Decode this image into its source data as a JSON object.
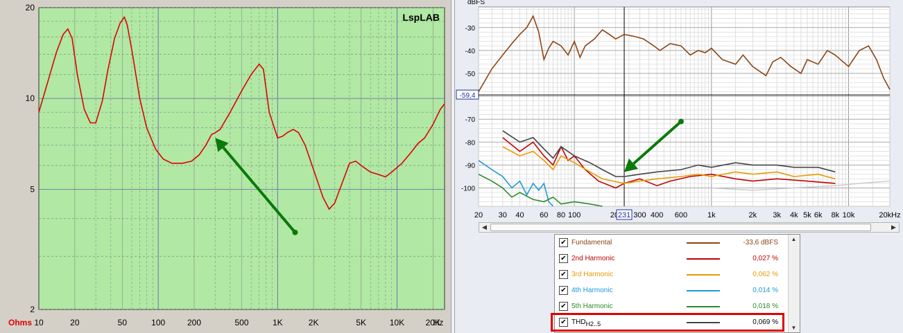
{
  "left_chart": {
    "watermark": "LspLAB",
    "y_ticks": [
      "20",
      "10",
      "5",
      "2"
    ],
    "y_unit": "Ohms",
    "x_ticks": [
      "10",
      "20",
      "50",
      "100",
      "200",
      "500",
      "1K",
      "2K",
      "5K",
      "10K",
      "20K"
    ],
    "x_unit": "Hz",
    "colors": {
      "background": "#b0e8a4",
      "trace": "#e00000",
      "arrow": "#0a7a0a",
      "grid_major": "#6a6aa8",
      "grid_minor": "#7a7a7a"
    }
  },
  "right_chart": {
    "y_unit": "dBFS",
    "y_ticks": [
      "-30",
      "-40",
      "-50",
      "-70",
      "-80",
      "-90",
      "-100"
    ],
    "cursor_level": "-59,4",
    "cursor_freq": "231",
    "x_ticks": [
      "20",
      "30",
      "40",
      "60",
      "80",
      "100",
      "300",
      "400",
      "600",
      "1k",
      "2k",
      "3k",
      "4k",
      "5k",
      "6k",
      "8k",
      "10k",
      "20kHz"
    ],
    "x_tick_partial": "20"
  },
  "legend": {
    "rows": [
      {
        "name": "Fundamental",
        "value": "-33,6 dBFS",
        "color": "#8b4513"
      },
      {
        "name": "2nd Harmonic",
        "value": "0,027 %",
        "color": "#c00000"
      },
      {
        "name": "3rd Harmonic",
        "value": "0,062 %",
        "color": "#e89a00"
      },
      {
        "name": "4th Harmonic",
        "value": "0,014 %",
        "color": "#1a9ad6"
      },
      {
        "name": "5th Harmonic",
        "value": "0,018 %",
        "color": "#2a8a2a"
      },
      {
        "name": "THD",
        "name_sub": "H2..5",
        "value": "0,069 %",
        "color": "#444444"
      }
    ]
  },
  "chart_data": [
    {
      "type": "line",
      "title": "",
      "xlabel": "Hz",
      "ylabel": "Ohms",
      "x_scale": "log",
      "y_scale": "log",
      "xlim": [
        10,
        25000
      ],
      "ylim": [
        2,
        20
      ],
      "legend": "none",
      "series": [
        {
          "color": "#e00000",
          "points": [
            [
              10,
              9.0
            ],
            [
              12,
              11.5
            ],
            [
              14,
              14.2
            ],
            [
              16,
              16.3
            ],
            [
              17.5,
              17.0
            ],
            [
              19,
              15.8
            ],
            [
              21,
              12.0
            ],
            [
              24,
              9.2
            ],
            [
              27,
              8.3
            ],
            [
              30,
              8.3
            ],
            [
              34,
              9.8
            ],
            [
              38,
              12.5
            ],
            [
              43,
              15.8
            ],
            [
              48,
              17.8
            ],
            [
              52,
              18.6
            ],
            [
              55,
              17.5
            ],
            [
              60,
              14.5
            ],
            [
              70,
              10.0
            ],
            [
              80,
              8.0
            ],
            [
              95,
              6.8
            ],
            [
              110,
              6.3
            ],
            [
              130,
              6.1
            ],
            [
              160,
              6.1
            ],
            [
              190,
              6.2
            ],
            [
              220,
              6.5
            ],
            [
              250,
              7.0
            ],
            [
              280,
              7.6
            ],
            [
              300,
              7.7
            ],
            [
              330,
              7.9
            ],
            [
              400,
              9.0
            ],
            [
              500,
              10.6
            ],
            [
              600,
              12.0
            ],
            [
              700,
              13.0
            ],
            [
              760,
              12.5
            ],
            [
              850,
              9.0
            ],
            [
              1000,
              7.4
            ],
            [
              1100,
              7.5
            ],
            [
              1200,
              7.7
            ],
            [
              1350,
              7.9
            ],
            [
              1500,
              7.7
            ],
            [
              1700,
              7.0
            ],
            [
              2000,
              5.8
            ],
            [
              2400,
              4.7
            ],
            [
              2700,
              4.3
            ],
            [
              3000,
              4.5
            ],
            [
              3500,
              5.3
            ],
            [
              4000,
              6.1
            ],
            [
              4500,
              6.2
            ],
            [
              5000,
              6.0
            ],
            [
              6000,
              5.7
            ],
            [
              7000,
              5.6
            ],
            [
              8000,
              5.5
            ],
            [
              9000,
              5.7
            ],
            [
              11000,
              6.1
            ],
            [
              13000,
              6.6
            ],
            [
              15000,
              7.1
            ],
            [
              17000,
              7.4
            ],
            [
              20000,
              8.2
            ],
            [
              23000,
              9.2
            ],
            [
              25000,
              9.6
            ]
          ]
        }
      ],
      "annotations": [
        {
          "kind": "arrow",
          "from": [
            1400,
            3.6
          ],
          "to": [
            300,
            7.4
          ]
        }
      ]
    },
    {
      "type": "line",
      "title": "",
      "xlabel": "",
      "ylabel": "dBFS",
      "x_scale": "log",
      "xlim": [
        20,
        20000
      ],
      "ylim": [
        -108,
        -21
      ],
      "legend": "bottom",
      "series": [
        {
          "name": "Fundamental",
          "color": "#8b4513",
          "points": [
            [
              20,
              -58
            ],
            [
              25,
              -48
            ],
            [
              30,
              -42
            ],
            [
              35,
              -37
            ],
            [
              40,
              -33
            ],
            [
              45,
              -30
            ],
            [
              50,
              -25
            ],
            [
              55,
              -32
            ],
            [
              60,
              -44
            ],
            [
              65,
              -39
            ],
            [
              70,
              -36
            ],
            [
              80,
              -38
            ],
            [
              90,
              -42
            ],
            [
              100,
              -36
            ],
            [
              110,
              -43
            ],
            [
              120,
              -38
            ],
            [
              140,
              -35
            ],
            [
              160,
              -31
            ],
            [
              180,
              -33
            ],
            [
              200,
              -35
            ],
            [
              231,
              -33
            ],
            [
              280,
              -34
            ],
            [
              320,
              -35
            ],
            [
              380,
              -38
            ],
            [
              420,
              -40
            ],
            [
              500,
              -37
            ],
            [
              600,
              -38
            ],
            [
              700,
              -42
            ],
            [
              800,
              -40
            ],
            [
              900,
              -41
            ],
            [
              1000,
              -39
            ],
            [
              1200,
              -44
            ],
            [
              1500,
              -46
            ],
            [
              1700,
              -42
            ],
            [
              2000,
              -47
            ],
            [
              2500,
              -51
            ],
            [
              2800,
              -45
            ],
            [
              3200,
              -43
            ],
            [
              3800,
              -47
            ],
            [
              4500,
              -50
            ],
            [
              5000,
              -44
            ],
            [
              6000,
              -46
            ],
            [
              7000,
              -40
            ],
            [
              8000,
              -42
            ],
            [
              10000,
              -47
            ],
            [
              12000,
              -40
            ],
            [
              14000,
              -38
            ],
            [
              16000,
              -44
            ],
            [
              18000,
              -52
            ],
            [
              20000,
              -57
            ]
          ]
        },
        {
          "name": "2nd Harmonic",
          "color": "#c00000",
          "points": [
            [
              30,
              -78
            ],
            [
              40,
              -84
            ],
            [
              50,
              -80
            ],
            [
              60,
              -86
            ],
            [
              70,
              -90
            ],
            [
              80,
              -82
            ],
            [
              90,
              -88
            ],
            [
              100,
              -86
            ],
            [
              120,
              -92
            ],
            [
              150,
              -97
            ],
            [
              200,
              -100
            ],
            [
              231,
              -98
            ],
            [
              300,
              -96
            ],
            [
              400,
              -99
            ],
            [
              500,
              -97
            ],
            [
              700,
              -95
            ],
            [
              1000,
              -94
            ],
            [
              1500,
              -96
            ],
            [
              2000,
              -97
            ],
            [
              3000,
              -96
            ],
            [
              5000,
              -97
            ],
            [
              8000,
              -98
            ]
          ]
        },
        {
          "name": "3rd Harmonic",
          "color": "#e89a00",
          "points": [
            [
              30,
              -82
            ],
            [
              40,
              -86
            ],
            [
              50,
              -84
            ],
            [
              60,
              -88
            ],
            [
              70,
              -92
            ],
            [
              80,
              -86
            ],
            [
              100,
              -89
            ],
            [
              130,
              -93
            ],
            [
              160,
              -96
            ],
            [
              231,
              -98
            ],
            [
              300,
              -97
            ],
            [
              400,
              -96
            ],
            [
              600,
              -95
            ],
            [
              800,
              -94
            ],
            [
              1000,
              -95
            ],
            [
              1500,
              -93
            ],
            [
              2000,
              -94
            ],
            [
              3000,
              -93
            ],
            [
              4000,
              -95
            ],
            [
              6000,
              -94
            ],
            [
              8000,
              -96
            ]
          ]
        },
        {
          "name": "4th Harmonic",
          "color": "#1a9ad6",
          "points": [
            [
              20,
              -88
            ],
            [
              25,
              -92
            ],
            [
              30,
              -95
            ],
            [
              35,
              -100
            ],
            [
              40,
              -97
            ],
            [
              45,
              -103
            ],
            [
              50,
              -98
            ],
            [
              55,
              -101
            ],
            [
              60,
              -98
            ],
            [
              65,
              -106
            ],
            [
              70,
              -108
            ]
          ]
        },
        {
          "name": "5th Harmonic",
          "color": "#2a8a2a",
          "points": [
            [
              20,
              -94
            ],
            [
              25,
              -97
            ],
            [
              30,
              -100
            ],
            [
              35,
              -104
            ],
            [
              40,
              -102
            ],
            [
              50,
              -105
            ],
            [
              60,
              -106
            ],
            [
              70,
              -104
            ],
            [
              80,
              -107
            ],
            [
              100,
              -106
            ],
            [
              130,
              -107
            ],
            [
              160,
              -108
            ]
          ]
        },
        {
          "name": "THD H2..5",
          "color": "#444444",
          "points": [
            [
              30,
              -75
            ],
            [
              40,
              -80
            ],
            [
              50,
              -78
            ],
            [
              60,
              -83
            ],
            [
              70,
              -87
            ],
            [
              80,
              -82
            ],
            [
              100,
              -86
            ],
            [
              130,
              -89
            ],
            [
              160,
              -92
            ],
            [
              200,
              -95
            ],
            [
              231,
              -95
            ],
            [
              300,
              -94
            ],
            [
              400,
              -93
            ],
            [
              600,
              -92
            ],
            [
              800,
              -90
            ],
            [
              1000,
              -91
            ],
            [
              1500,
              -89
            ],
            [
              2000,
              -90
            ],
            [
              3000,
              -90
            ],
            [
              4000,
              -91
            ],
            [
              5000,
              -91
            ],
            [
              6000,
              -91
            ],
            [
              8000,
              -93
            ]
          ]
        }
      ],
      "annotations": [
        {
          "kind": "arrow",
          "from": [
            600,
            -71
          ],
          "to": [
            231,
            -93
          ]
        }
      ]
    }
  ]
}
